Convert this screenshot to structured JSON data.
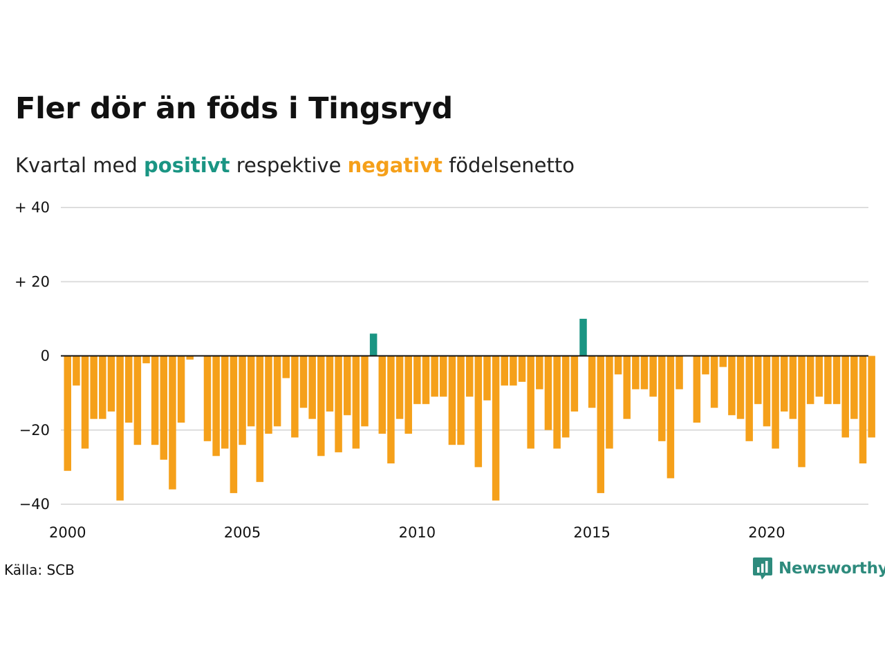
{
  "title": "Fler dör än föds i Tingsryd",
  "subtitle": {
    "prefix": "Kvartal med",
    "positive_word": "positivt",
    "middle": "respektive",
    "negative_word": "negativt",
    "suffix": "födelsenetto"
  },
  "source": "Källa: SCB",
  "brand": "Newsworthy",
  "colors": {
    "positive": "#1a9583",
    "negative": "#f5a01a",
    "grid": "#dddddd",
    "baseline": "#111111",
    "brand": "#2e8b7d"
  },
  "chart_data": {
    "type": "bar",
    "x_unit": "quarter",
    "x_start": "2000 Q1",
    "x_end": "2023 Q1",
    "ylim": [
      -40,
      40
    ],
    "y_ticks": [
      40,
      20,
      0,
      -20,
      -40
    ],
    "y_tick_labels": [
      "+ 40",
      "+ 20",
      "0",
      "−20",
      "−40"
    ],
    "x_ticks": [
      2000,
      2005,
      2010,
      2015,
      2020
    ],
    "x_tick_labels": [
      "2000",
      "2005",
      "2010",
      "2015",
      "2020"
    ],
    "grid": "horizontal",
    "legend": "none",
    "values": [
      -31,
      -8,
      -25,
      -17,
      -17,
      -15,
      -39,
      -18,
      -24,
      -2,
      -24,
      -28,
      -36,
      -18,
      -1,
      0,
      -23,
      -27,
      -25,
      -37,
      -24,
      -19,
      -34,
      -21,
      -19,
      -6,
      -22,
      -14,
      -17,
      -27,
      -15,
      -26,
      -16,
      -25,
      -19,
      6,
      -21,
      -29,
      -17,
      -21,
      -13,
      -13,
      -11,
      -11,
      -24,
      -24,
      -11,
      -30,
      -12,
      -39,
      -8,
      -8,
      -7,
      -25,
      -9,
      -20,
      -25,
      -22,
      -15,
      10,
      -14,
      -37,
      -25,
      -5,
      -17,
      -9,
      -9,
      -11,
      -23,
      -33,
      -9,
      0,
      -18,
      -5,
      -14,
      -3,
      -16,
      -17,
      -23,
      -13,
      -19,
      -25,
      -15,
      -17,
      -30,
      -13,
      -11,
      -13,
      -13,
      -22,
      -17,
      -29,
      -22
    ]
  }
}
